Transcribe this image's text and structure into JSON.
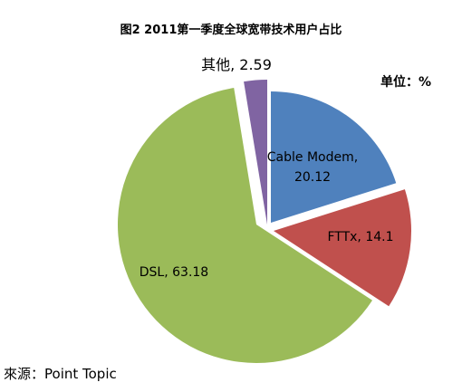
{
  "chart_data": {
    "type": "pie",
    "title": "图2 2011第一季度全球宽带技术用户占比",
    "unit_note": "单位：%",
    "source": "來源：Point Topic",
    "slices": [
      {
        "label": "Cable Modem",
        "value": 20.12,
        "display": "Cable Modem,\n20.12",
        "color": "#4f81bd"
      },
      {
        "label": "FTTx",
        "value": 14.1,
        "display": "FTTx, 14.1",
        "color": "#c0504d"
      },
      {
        "label": "DSL",
        "value": 63.18,
        "display": "DSL, 63.18",
        "color": "#9bbb59"
      },
      {
        "label": "其他",
        "value": 2.59,
        "display": "其他, 2.59",
        "color": "#8064a2"
      }
    ]
  }
}
